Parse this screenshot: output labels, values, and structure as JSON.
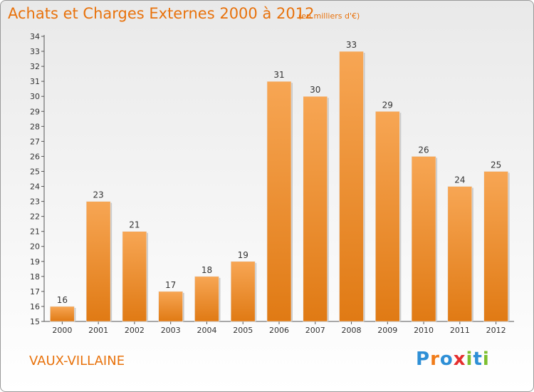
{
  "title": "Achats et Charges Externes 2000 à 2012",
  "subtitle": "(en milliers d'€)",
  "place": "VAUX-VILLAINE",
  "logo": {
    "letters": [
      "P",
      "r",
      "o",
      "x",
      "i",
      "t",
      "i"
    ],
    "colors": [
      "#2e8fd6",
      "#f07c1a",
      "#2e8fd6",
      "#e52e2e",
      "#7cbf2f",
      "#2e8fd6",
      "#7cbf2f"
    ]
  },
  "colors": {
    "accent": "#e8720c",
    "bar_top": "#f7a654",
    "bar_bottom": "#e07a14"
  },
  "chart_data": {
    "type": "bar",
    "categories": [
      "2000",
      "2001",
      "2002",
      "2003",
      "2004",
      "2005",
      "2006",
      "2007",
      "2008",
      "2009",
      "2010",
      "2011",
      "2012"
    ],
    "values": [
      16,
      23,
      21,
      17,
      18,
      19,
      31,
      30,
      33,
      29,
      26,
      24,
      25
    ],
    "title": "Achats et Charges Externes 2000 à 2012",
    "subtitle": "(en milliers d'€)",
    "xlabel": "",
    "ylabel": "",
    "ylim": [
      15,
      34
    ],
    "yticks": [
      15,
      16,
      17,
      18,
      19,
      20,
      21,
      22,
      23,
      24,
      25,
      26,
      27,
      28,
      29,
      30,
      31,
      32,
      33,
      34
    ],
    "grid": false,
    "data_labels": true
  }
}
